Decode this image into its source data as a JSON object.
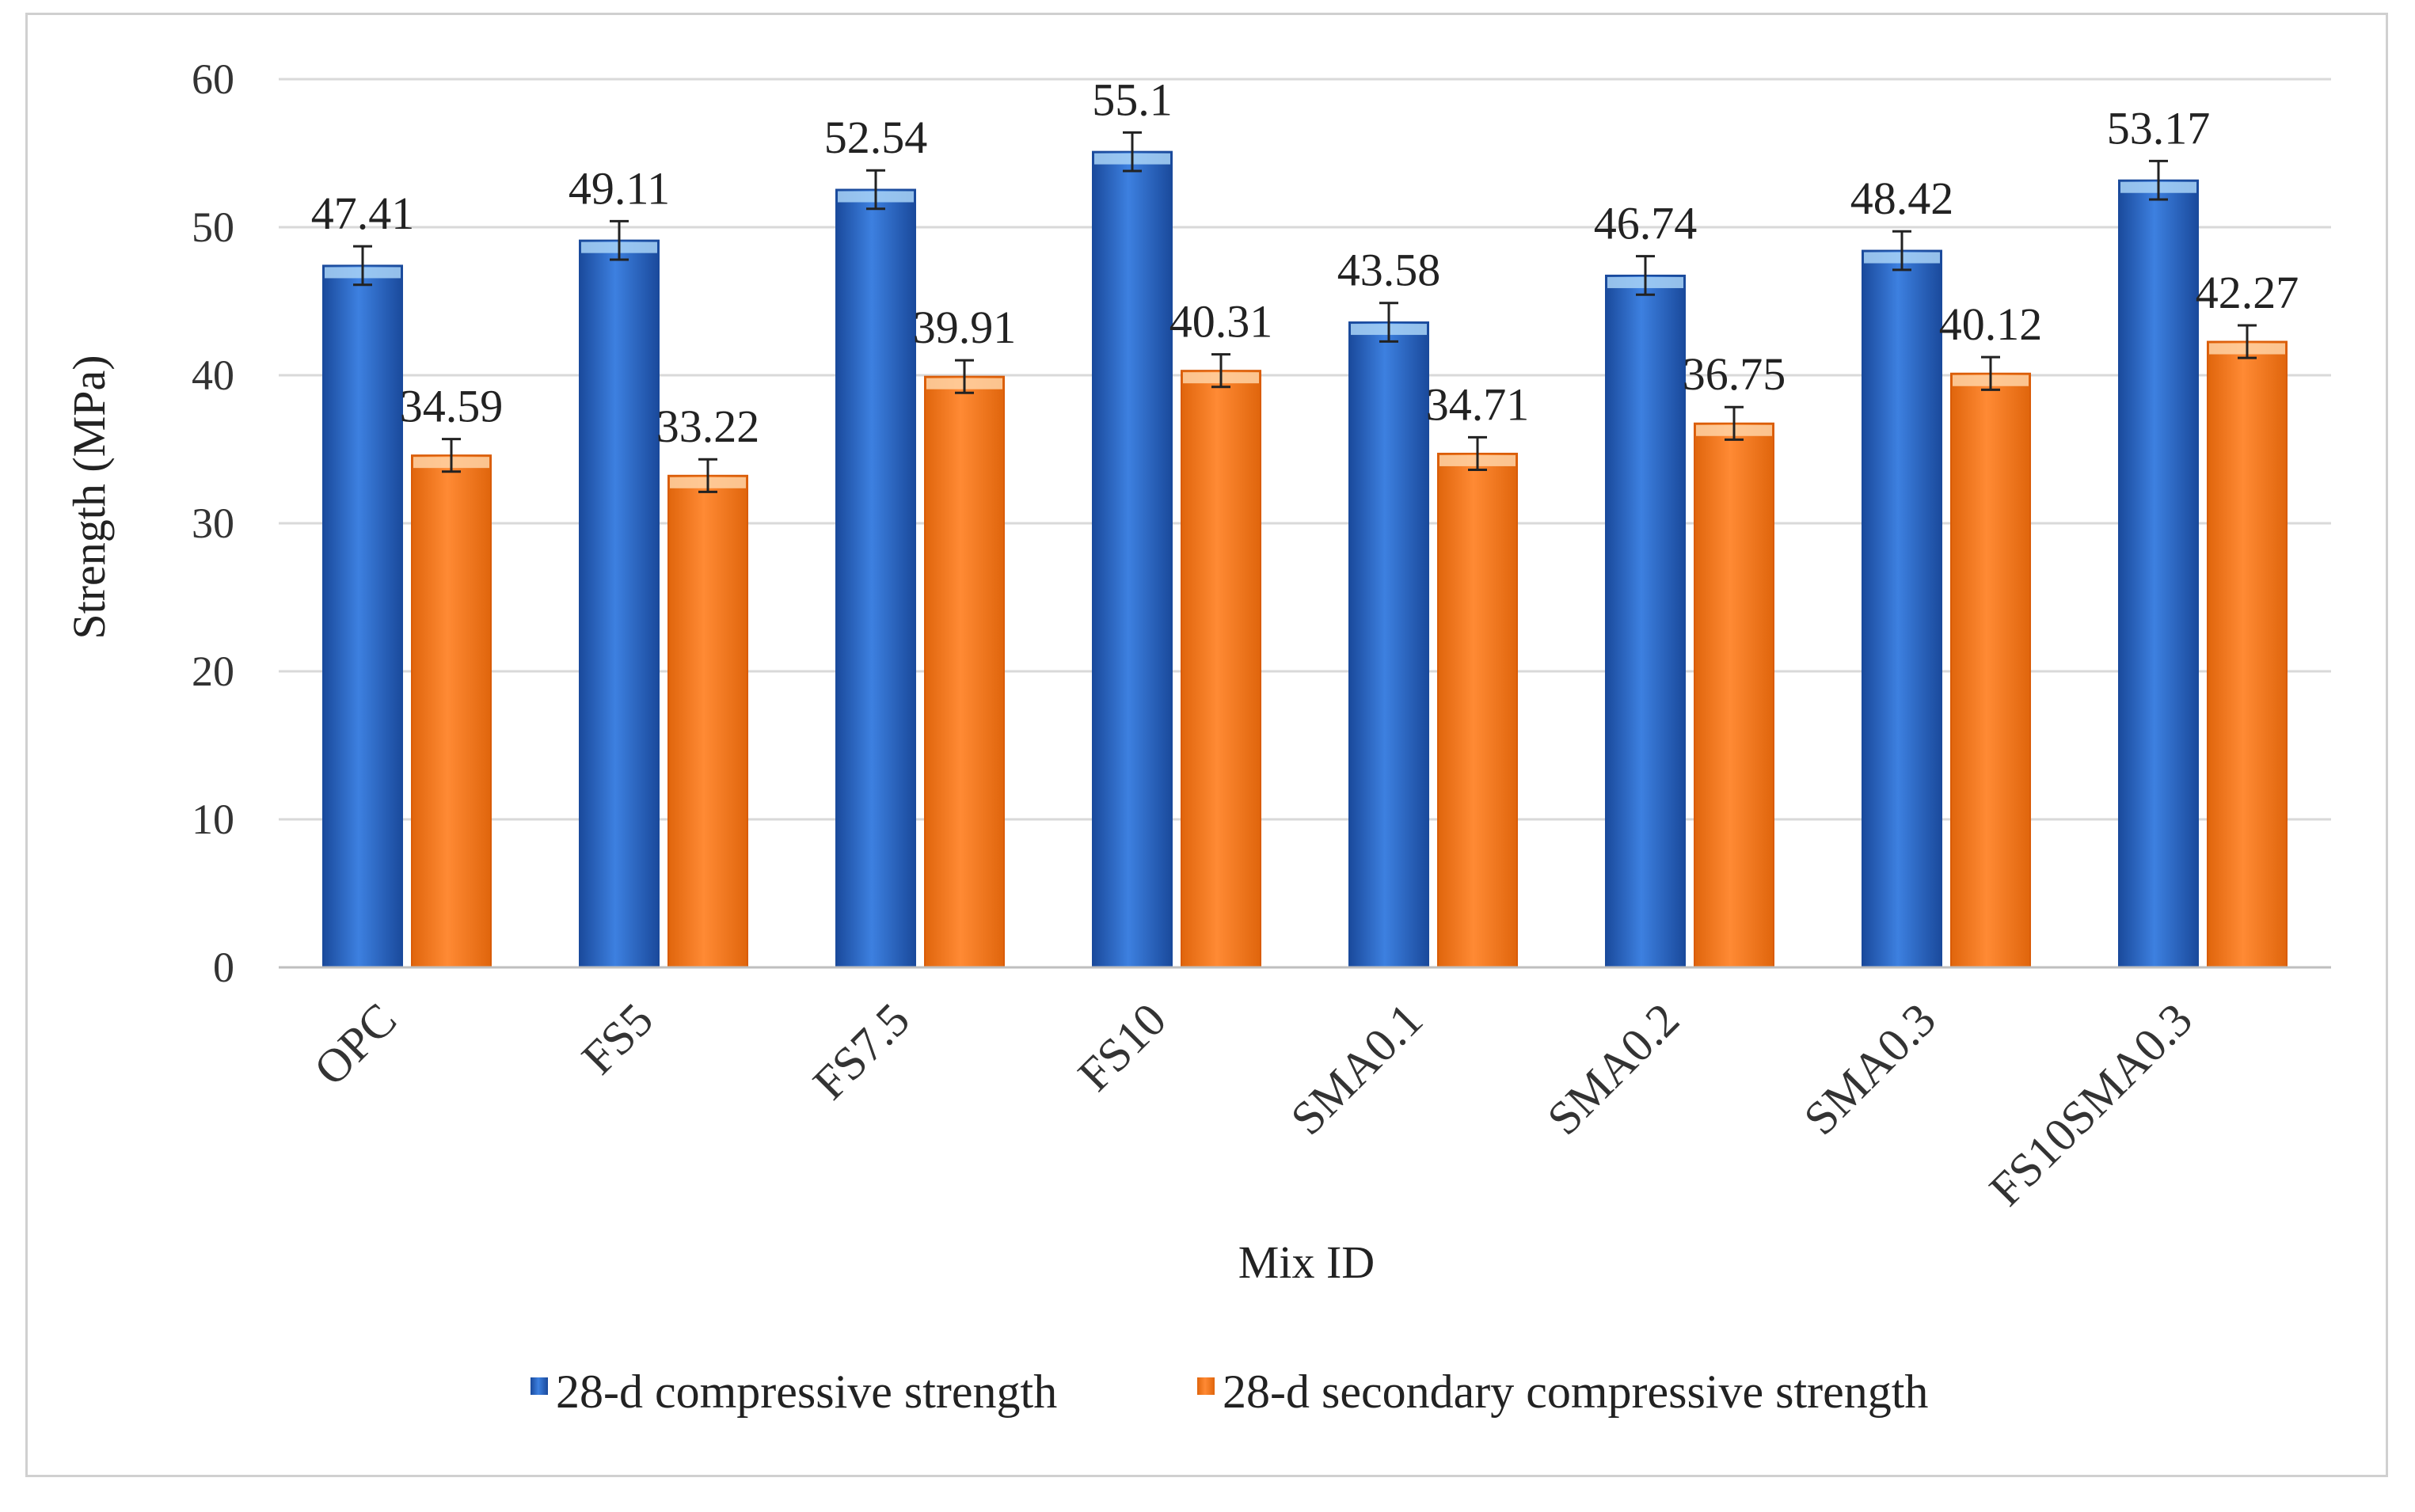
{
  "colors": {
    "series1": "#2e6fcf",
    "series1_dark": "#1a4a9c",
    "series2": "#ff7a1f",
    "series2_dark": "#d95c08",
    "grid": "#d9d9d9"
  },
  "chart_data": {
    "type": "bar",
    "title": "",
    "xlabel": "Mix ID",
    "ylabel": "Strength (MPa)",
    "ylim": [
      0,
      60
    ],
    "yticks": [
      0,
      10,
      20,
      30,
      40,
      50,
      60
    ],
    "grid": true,
    "legend_position": "bottom",
    "categories": [
      "OPC",
      "FS5",
      "FS7.5",
      "FS10",
      "SMA0.1",
      "SMA0.2",
      "SMA0.3",
      "FS10SMA0.3"
    ],
    "series": [
      {
        "name": "28-d compressive strength",
        "values": [
          47.41,
          49.11,
          52.54,
          55.1,
          43.58,
          46.74,
          48.42,
          53.17
        ],
        "error": [
          1.3,
          1.3,
          1.3,
          1.3,
          1.3,
          1.3,
          1.3,
          1.3
        ]
      },
      {
        "name": "28-d secondary compressive strength",
        "values": [
          34.59,
          33.22,
          39.91,
          40.31,
          34.71,
          36.75,
          40.12,
          42.27
        ],
        "error": [
          1.1,
          1.1,
          1.1,
          1.1,
          1.1,
          1.1,
          1.1,
          1.1
        ]
      }
    ]
  }
}
